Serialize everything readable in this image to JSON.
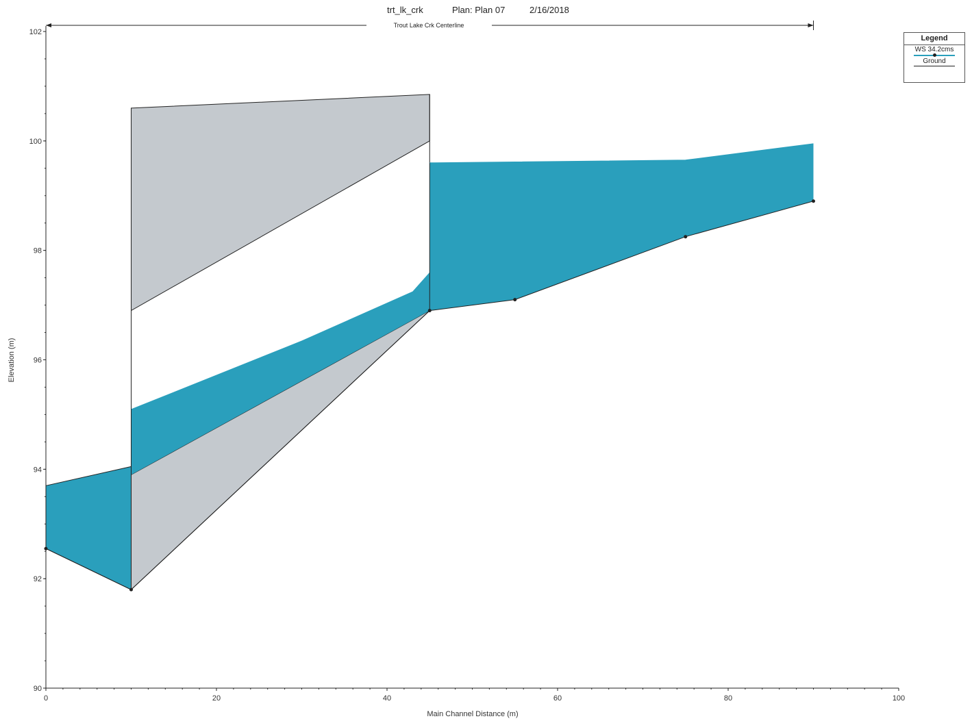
{
  "header": {
    "project": "trt_lk_crk",
    "plan": "Plan: Plan 07",
    "date": "2/16/2018",
    "reach": "Trout Lake Crk Centerline"
  },
  "legend": {
    "title": "Legend",
    "ws_label": "WS 34.2cms",
    "ground_label": "Ground"
  },
  "colors": {
    "water": "#2a9fbc",
    "structure": "#c4c9ce",
    "line": "#222222"
  },
  "chart_data": {
    "type": "area",
    "xlabel": "Main Channel Distance (m)",
    "ylabel": "Elevation (m)",
    "xlim": [
      0,
      100
    ],
    "ylim": [
      90,
      102
    ],
    "x_ticks": [
      0,
      20,
      40,
      60,
      80,
      100
    ],
    "x_tick_labels": [
      "0",
      "20",
      "40",
      "60",
      "80",
      "100"
    ],
    "y_ticks": [
      90,
      92,
      94,
      96,
      98,
      100,
      102
    ],
    "y_tick_labels": [
      "90",
      "92",
      "94",
      "96",
      "98",
      "100",
      "102"
    ],
    "reach_extent": [
      0,
      90
    ],
    "series": [
      {
        "name": "WS 34.2cms",
        "upstream": {
          "x": [
            0,
            10
          ],
          "y": [
            93.7,
            94.05
          ]
        },
        "culvert": {
          "x": [
            10,
            45
          ],
          "y": [
            95.1,
            97.6
          ]
        },
        "downstream": {
          "x": [
            45,
            75,
            90
          ],
          "y": [
            99.6,
            99.65,
            99.95
          ]
        }
      },
      {
        "name": "Ground",
        "upstream": {
          "x": [
            0,
            10
          ],
          "y": [
            92.55,
            91.8
          ]
        },
        "culvert_invert": {
          "x": [
            10,
            45
          ],
          "y": [
            93.9,
            96.9
          ]
        },
        "downstream": {
          "x": [
            45,
            55,
            75,
            90
          ],
          "y": [
            96.9,
            97.1,
            98.25,
            98.9
          ]
        },
        "points": {
          "x": [
            0,
            10,
            45,
            55,
            75,
            90
          ],
          "y": [
            92.55,
            91.8,
            96.9,
            97.1,
            98.25,
            98.9
          ]
        }
      }
    ],
    "culvert": {
      "x": [
        10,
        45
      ],
      "road_top": [
        100.6,
        100.85
      ],
      "soffit": [
        96.9,
        100.0
      ],
      "invert": [
        93.9,
        96.9
      ],
      "lower_fill_bottom": [
        91.8,
        96.9
      ]
    }
  }
}
